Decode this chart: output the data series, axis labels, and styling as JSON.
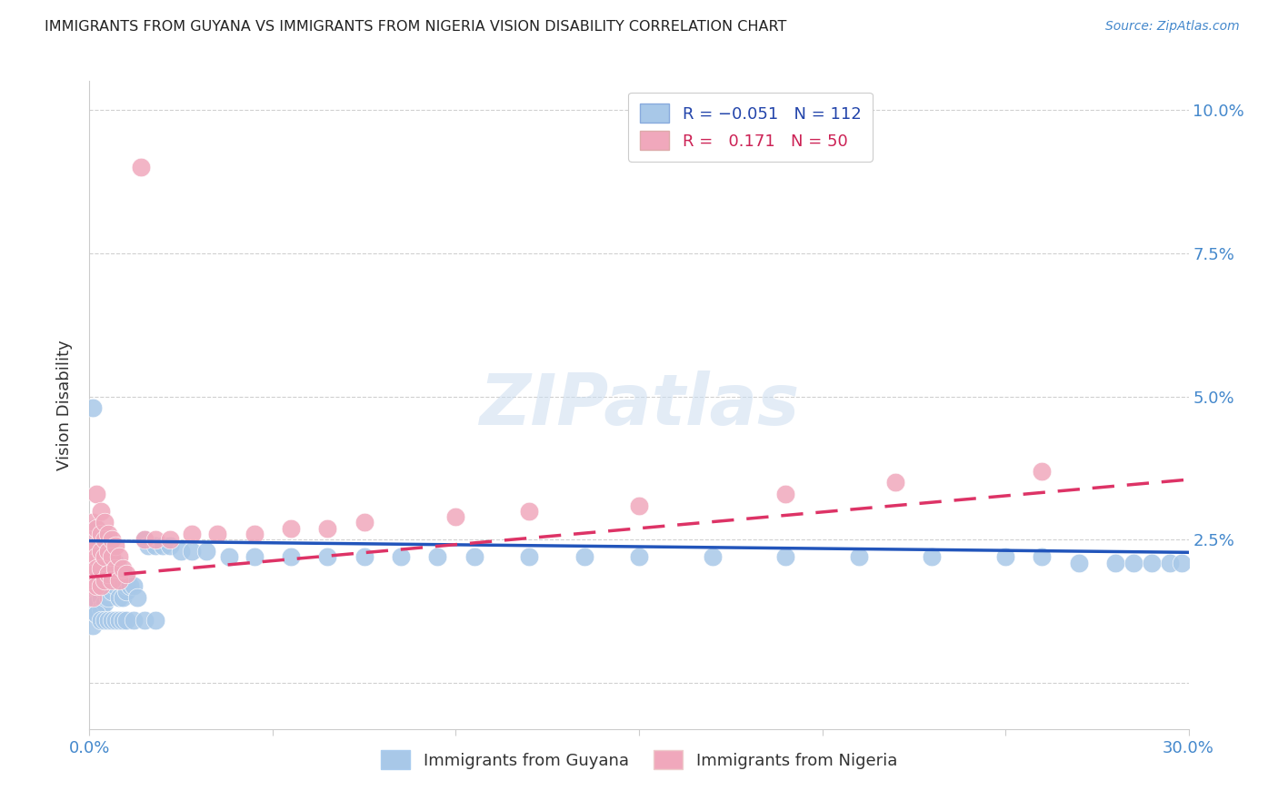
{
  "title": "IMMIGRANTS FROM GUYANA VS IMMIGRANTS FROM NIGERIA VISION DISABILITY CORRELATION CHART",
  "source": "Source: ZipAtlas.com",
  "xlabel_label": "Immigrants from Guyana",
  "ylabel_label": "Vision Disability",
  "xlabel2_label": "Immigrants from Nigeria",
  "x_min": 0.0,
  "x_max": 0.3,
  "y_min": 0.0,
  "y_max": 0.105,
  "guyana_color": "#a8c8e8",
  "nigeria_color": "#f0a8bc",
  "guyana_line_color": "#2255bb",
  "nigeria_line_color": "#dd3366",
  "guyana_R": -0.051,
  "guyana_N": 112,
  "nigeria_R": 0.171,
  "nigeria_N": 50,
  "watermark": "ZIPatlas",
  "background_color": "#ffffff",
  "grid_color": "#d0d0d0",
  "guyana_x": [
    0.001,
    0.001,
    0.001,
    0.001,
    0.001,
    0.001,
    0.001,
    0.001,
    0.001,
    0.001,
    0.002,
    0.002,
    0.002,
    0.002,
    0.002,
    0.002,
    0.002,
    0.002,
    0.002,
    0.002,
    0.003,
    0.003,
    0.003,
    0.003,
    0.003,
    0.003,
    0.003,
    0.003,
    0.003,
    0.004,
    0.004,
    0.004,
    0.004,
    0.004,
    0.004,
    0.004,
    0.004,
    0.005,
    0.005,
    0.005,
    0.005,
    0.005,
    0.005,
    0.005,
    0.006,
    0.006,
    0.006,
    0.006,
    0.006,
    0.006,
    0.007,
    0.007,
    0.007,
    0.007,
    0.007,
    0.008,
    0.008,
    0.008,
    0.008,
    0.009,
    0.009,
    0.009,
    0.01,
    0.01,
    0.01,
    0.011,
    0.012,
    0.013,
    0.015,
    0.016,
    0.018,
    0.02,
    0.022,
    0.025,
    0.028,
    0.032,
    0.038,
    0.045,
    0.055,
    0.065,
    0.075,
    0.085,
    0.095,
    0.105,
    0.12,
    0.135,
    0.15,
    0.17,
    0.19,
    0.21,
    0.23,
    0.25,
    0.26,
    0.27,
    0.28,
    0.285,
    0.29,
    0.295,
    0.298,
    0.001,
    0.002,
    0.003,
    0.004,
    0.005,
    0.006,
    0.007,
    0.008,
    0.009,
    0.01,
    0.012,
    0.015,
    0.018
  ],
  "guyana_y": [
    0.027,
    0.024,
    0.021,
    0.019,
    0.018,
    0.017,
    0.016,
    0.015,
    0.013,
    0.01,
    0.027,
    0.023,
    0.021,
    0.02,
    0.018,
    0.017,
    0.016,
    0.015,
    0.014,
    0.012,
    0.026,
    0.023,
    0.021,
    0.02,
    0.018,
    0.017,
    0.016,
    0.015,
    0.013,
    0.025,
    0.022,
    0.021,
    0.02,
    0.018,
    0.017,
    0.016,
    0.014,
    0.022,
    0.021,
    0.02,
    0.019,
    0.018,
    0.016,
    0.015,
    0.022,
    0.021,
    0.02,
    0.019,
    0.017,
    0.016,
    0.021,
    0.02,
    0.019,
    0.018,
    0.017,
    0.02,
    0.019,
    0.018,
    0.015,
    0.019,
    0.018,
    0.015,
    0.018,
    0.017,
    0.016,
    0.017,
    0.017,
    0.015,
    0.025,
    0.024,
    0.024,
    0.024,
    0.024,
    0.023,
    0.023,
    0.023,
    0.022,
    0.022,
    0.022,
    0.022,
    0.022,
    0.022,
    0.022,
    0.022,
    0.022,
    0.022,
    0.022,
    0.022,
    0.022,
    0.022,
    0.022,
    0.022,
    0.022,
    0.021,
    0.021,
    0.021,
    0.021,
    0.021,
    0.021,
    0.048,
    0.012,
    0.011,
    0.011,
    0.011,
    0.011,
    0.011,
    0.011,
    0.011,
    0.011,
    0.011,
    0.011,
    0.011
  ],
  "nigeria_x": [
    0.014,
    0.001,
    0.001,
    0.001,
    0.001,
    0.001,
    0.001,
    0.001,
    0.002,
    0.002,
    0.002,
    0.002,
    0.002,
    0.002,
    0.003,
    0.003,
    0.003,
    0.003,
    0.003,
    0.004,
    0.004,
    0.004,
    0.004,
    0.005,
    0.005,
    0.005,
    0.006,
    0.006,
    0.006,
    0.007,
    0.007,
    0.008,
    0.008,
    0.009,
    0.01,
    0.015,
    0.018,
    0.022,
    0.028,
    0.035,
    0.045,
    0.055,
    0.065,
    0.075,
    0.1,
    0.12,
    0.15,
    0.19,
    0.22,
    0.26
  ],
  "nigeria_y": [
    0.09,
    0.028,
    0.025,
    0.023,
    0.021,
    0.019,
    0.017,
    0.015,
    0.033,
    0.027,
    0.024,
    0.022,
    0.02,
    0.017,
    0.03,
    0.026,
    0.023,
    0.02,
    0.017,
    0.028,
    0.025,
    0.022,
    0.018,
    0.026,
    0.023,
    0.019,
    0.025,
    0.022,
    0.018,
    0.024,
    0.02,
    0.022,
    0.018,
    0.02,
    0.019,
    0.025,
    0.025,
    0.025,
    0.026,
    0.026,
    0.026,
    0.027,
    0.027,
    0.028,
    0.029,
    0.03,
    0.031,
    0.033,
    0.035,
    0.037
  ],
  "guyana_line_start_y": 0.0248,
  "guyana_line_end_y": 0.0228,
  "nigeria_line_start_y": 0.0185,
  "nigeria_line_end_y": 0.0355
}
